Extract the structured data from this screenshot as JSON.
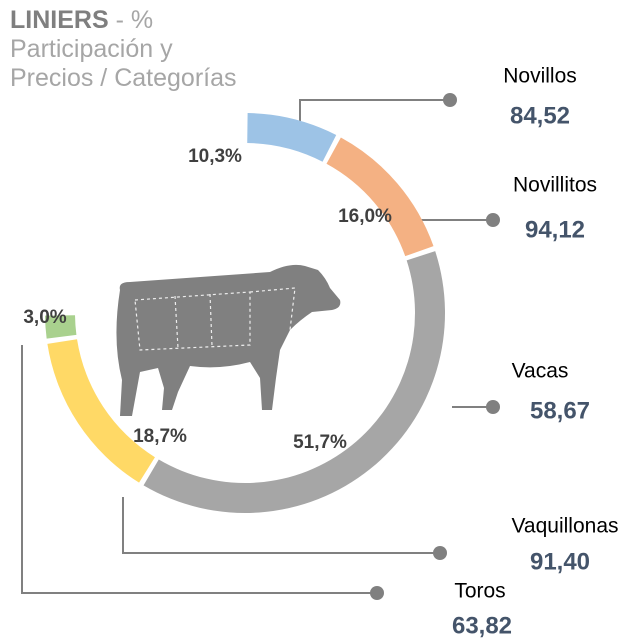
{
  "chart_data": {
    "type": "donut",
    "title_bold": "LINIERS",
    "title_rest": "- % Participación y Precios / Categorías",
    "categories": [
      "Novillos",
      "Novillitos",
      "Vacas",
      "Vaquillonas",
      "Toros"
    ],
    "values": [
      10.3,
      16.0,
      51.7,
      18.7,
      3.0
    ],
    "value_labels": [
      "10,3%",
      "16,0%",
      "51,7%",
      "18,7%",
      "3,0%"
    ],
    "colors": [
      "#9dc3e6",
      "#f4b183",
      "#a6a6a6",
      "#ffd966",
      "#a9d18e"
    ],
    "prices": [
      84.52,
      94.12,
      58.67,
      91.4,
      63.82
    ],
    "price_labels": [
      "84,52",
      "94,12",
      "58,67",
      "91,40",
      "63,82"
    ]
  }
}
